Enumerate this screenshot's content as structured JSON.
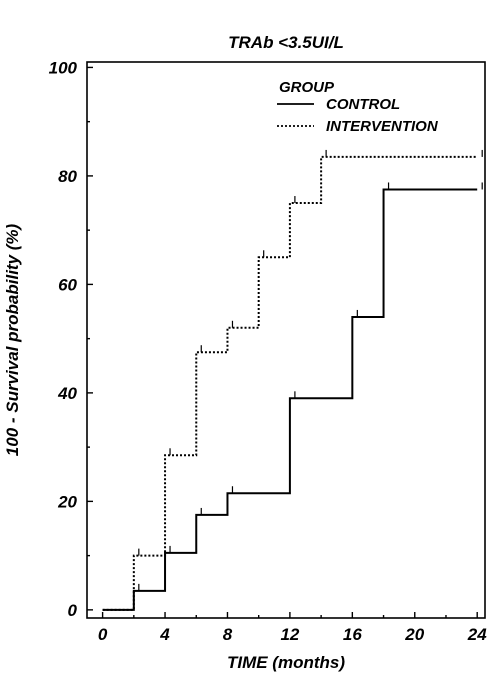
{
  "chart_data": {
    "type": "line",
    "step": true,
    "title": "TRAb <3.5UI/L",
    "xlabel": "TIME (months)",
    "ylabel": "100 - Survival probability (%)",
    "xlim": [
      -1,
      24.5
    ],
    "ylim": [
      -1.5,
      101
    ],
    "xticks": [
      0,
      4,
      8,
      12,
      16,
      20,
      24
    ],
    "yticks": [
      0,
      20,
      40,
      60,
      80,
      100
    ],
    "legend": {
      "title": "GROUP",
      "position": "top-right"
    },
    "grid": false,
    "series": [
      {
        "name": "CONTROL",
        "style": "solid",
        "color": "#000000",
        "x": [
          0,
          2,
          4,
          6,
          8,
          12,
          16,
          18,
          24
        ],
        "y": [
          0,
          3.5,
          10.5,
          17.5,
          21.5,
          39,
          54,
          77.5,
          77.5
        ]
      },
      {
        "name": "INTERVENTION",
        "style": "dotted",
        "color": "#000000",
        "x": [
          0,
          2,
          4,
          6,
          8,
          10,
          12,
          14,
          24
        ],
        "y": [
          0,
          10,
          28.5,
          47.5,
          52,
          65,
          75,
          83.5,
          83.5
        ]
      }
    ]
  }
}
